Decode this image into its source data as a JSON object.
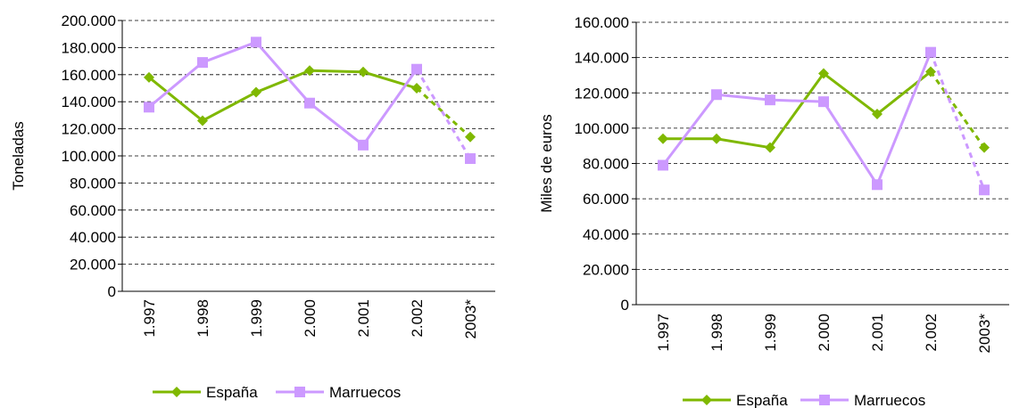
{
  "chart_data": [
    {
      "type": "line",
      "categories": [
        "1.997",
        "1.998",
        "1.999",
        "2.000",
        "2.001",
        "2.002",
        "2003*"
      ],
      "ylabel": "Toneladas",
      "xlabel": "",
      "ylim": [
        0,
        200000
      ],
      "yticks": [
        "0",
        "20.000",
        "40.000",
        "60.000",
        "80.000",
        "100.000",
        "120.000",
        "140.000",
        "160.000",
        "180.000",
        "200.000"
      ],
      "grid": "dashed horizontal",
      "legend": "bottom",
      "dashed_last_segment": true,
      "series": [
        {
          "name": "España",
          "color": "#7fb800",
          "marker": "diamond",
          "values": [
            158000,
            126000,
            147000,
            163000,
            162000,
            150000,
            114000
          ]
        },
        {
          "name": "Marruecos",
          "color": "#cc99ff",
          "marker": "square",
          "values": [
            136000,
            169000,
            184000,
            139000,
            108000,
            164000,
            98000
          ]
        }
      ]
    },
    {
      "type": "line",
      "categories": [
        "1.997",
        "1.998",
        "1.999",
        "2.000",
        "2.001",
        "2.002",
        "2003*"
      ],
      "ylabel": "Miles de euros",
      "xlabel": "",
      "ylim": [
        0,
        160000
      ],
      "yticks": [
        "0",
        "20.000",
        "40.000",
        "60.000",
        "80.000",
        "100.000",
        "120.000",
        "140.000",
        "160.000"
      ],
      "grid": "dashed horizontal",
      "legend": "bottom",
      "dashed_last_segment": true,
      "series": [
        {
          "name": "España",
          "color": "#7fb800",
          "marker": "diamond",
          "values": [
            94000,
            94000,
            89000,
            131000,
            108000,
            132000,
            89000
          ]
        },
        {
          "name": "Marruecos",
          "color": "#cc99ff",
          "marker": "square",
          "values": [
            79000,
            119000,
            116000,
            115000,
            68000,
            143000,
            65000
          ]
        }
      ]
    }
  ]
}
